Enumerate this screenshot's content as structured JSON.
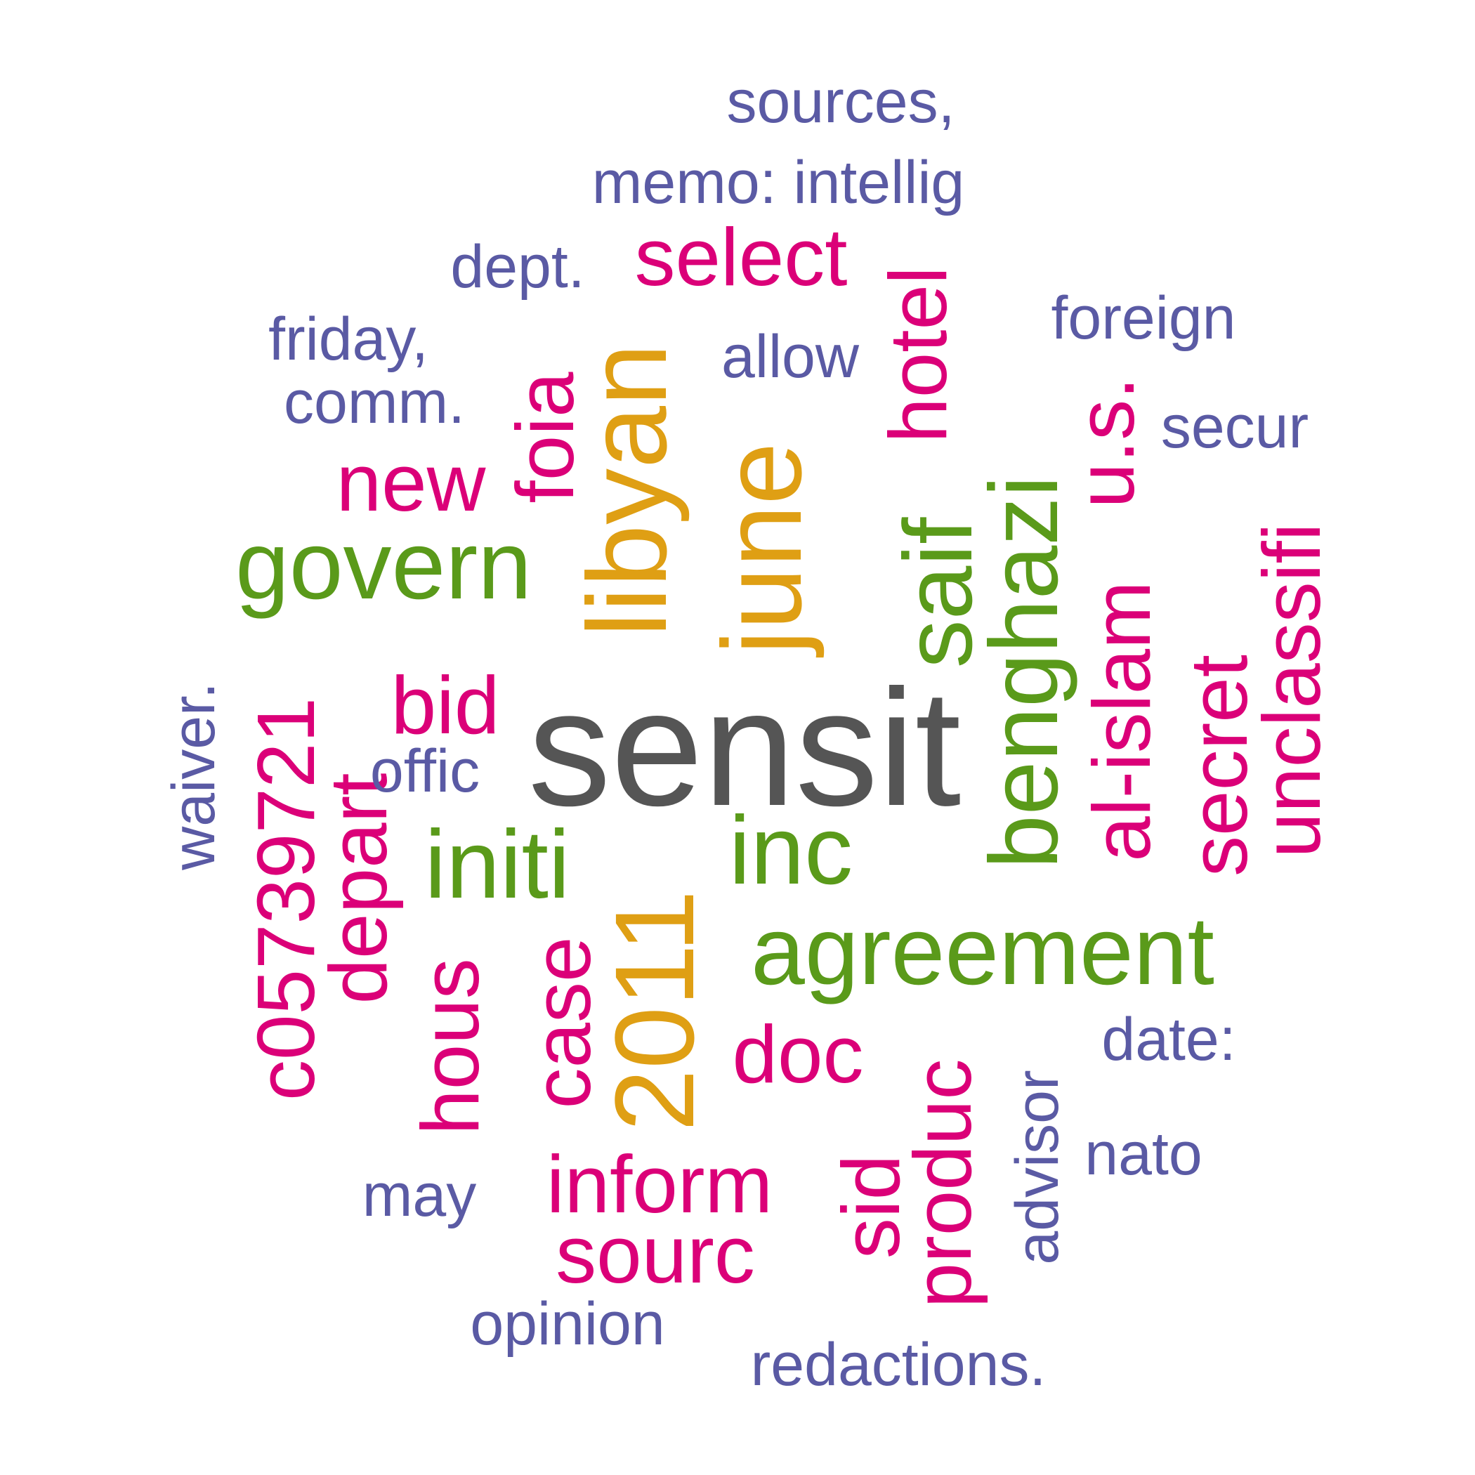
{
  "colors": {
    "gray": "#555555",
    "orange": "#df9f14",
    "green": "#5a9a1a",
    "pink": "#db0078",
    "purple": "#5a5aa4"
  },
  "words": [
    {
      "id": "sensit",
      "text": "sensit",
      "color": "gray"
    },
    {
      "id": "libyan",
      "text": "libyan",
      "color": "orange"
    },
    {
      "id": "june",
      "text": "june",
      "color": "orange"
    },
    {
      "id": "2011",
      "text": "2011",
      "color": "orange"
    },
    {
      "id": "govern",
      "text": "govern",
      "color": "green"
    },
    {
      "id": "agreement",
      "text": "agreement",
      "color": "green"
    },
    {
      "id": "benghazi",
      "text": "benghazi",
      "color": "green"
    },
    {
      "id": "initi",
      "text": "initi",
      "color": "green"
    },
    {
      "id": "inc",
      "text": "inc",
      "color": "green"
    },
    {
      "id": "saif",
      "text": "saif",
      "color": "green"
    },
    {
      "id": "select",
      "text": "select",
      "color": "pink"
    },
    {
      "id": "new",
      "text": "new",
      "color": "pink"
    },
    {
      "id": "foia",
      "text": "foia",
      "color": "pink"
    },
    {
      "id": "hotel",
      "text": "hotel",
      "color": "pink"
    },
    {
      "id": "us",
      "text": "u.s.",
      "color": "pink"
    },
    {
      "id": "al-islam",
      "text": "al-islam",
      "color": "pink"
    },
    {
      "id": "unclassifi",
      "text": "unclassifi",
      "color": "pink"
    },
    {
      "id": "secret",
      "text": "secret",
      "color": "pink"
    },
    {
      "id": "bid",
      "text": "bid",
      "color": "pink"
    },
    {
      "id": "c05739721",
      "text": "c05739721",
      "color": "pink"
    },
    {
      "id": "depart",
      "text": "depart",
      "color": "pink"
    },
    {
      "id": "hous",
      "text": "hous",
      "color": "pink"
    },
    {
      "id": "case",
      "text": "case",
      "color": "pink"
    },
    {
      "id": "doc",
      "text": "doc",
      "color": "pink"
    },
    {
      "id": "inform",
      "text": "inform",
      "color": "pink"
    },
    {
      "id": "sourc",
      "text": "sourc",
      "color": "pink"
    },
    {
      "id": "sid",
      "text": "sid",
      "color": "pink"
    },
    {
      "id": "produc",
      "text": "produc",
      "color": "pink"
    },
    {
      "id": "sources",
      "text": "sources,",
      "color": "purple"
    },
    {
      "id": "memo",
      "text": "memo: intellig",
      "color": "purple"
    },
    {
      "id": "dept",
      "text": "dept.",
      "color": "purple"
    },
    {
      "id": "foreign",
      "text": "foreign",
      "color": "purple"
    },
    {
      "id": "friday",
      "text": "friday,",
      "color": "purple"
    },
    {
      "id": "allow",
      "text": "allow",
      "color": "purple"
    },
    {
      "id": "comm",
      "text": "comm.",
      "color": "purple"
    },
    {
      "id": "secur",
      "text": "secur",
      "color": "purple"
    },
    {
      "id": "waiver",
      "text": "waiver.",
      "color": "purple"
    },
    {
      "id": "offic",
      "text": "offic",
      "color": "purple"
    },
    {
      "id": "date",
      "text": "date:",
      "color": "purple"
    },
    {
      "id": "advisor",
      "text": "advisor",
      "color": "purple"
    },
    {
      "id": "nato",
      "text": "nato",
      "color": "purple"
    },
    {
      "id": "may",
      "text": "may",
      "color": "purple"
    },
    {
      "id": "opinion",
      "text": "opinion",
      "color": "purple"
    },
    {
      "id": "redactions",
      "text": "redactions.",
      "color": "purple"
    }
  ]
}
